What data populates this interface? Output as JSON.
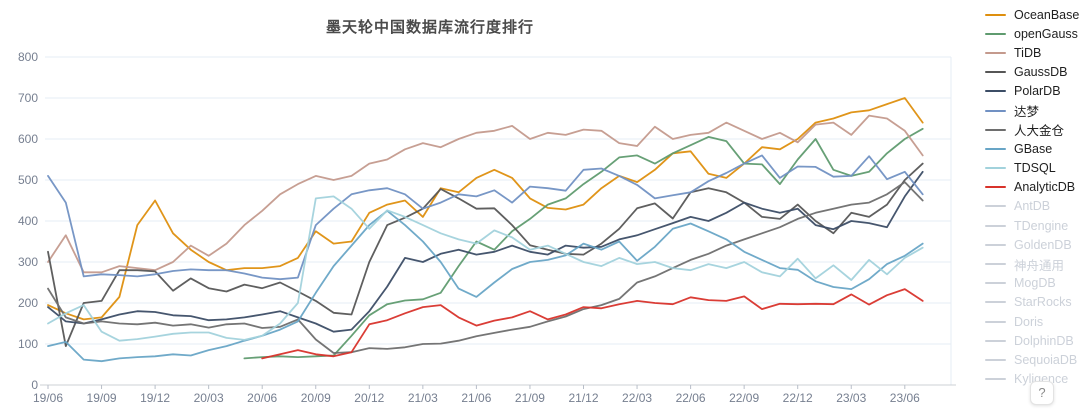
{
  "title": "墨天轮中国数据库流行度排行",
  "help_button_label": "?",
  "chart_data": {
    "type": "line",
    "title": "墨天轮中国数据库流行度排行",
    "xlabel": "",
    "ylabel": "",
    "ylim": [
      0,
      800
    ],
    "yticks": [
      0,
      100,
      200,
      300,
      400,
      500,
      600,
      700,
      800
    ],
    "grid": true,
    "legend_position": "right",
    "x_monthly": "2019/06 to 2023/07, one point per month (50 points)",
    "xtick_labels": [
      "19/06",
      "19/09",
      "19/12",
      "20/03",
      "20/06",
      "20/09",
      "20/12",
      "21/03",
      "21/06",
      "21/09",
      "21/12",
      "22/03",
      "22/06",
      "22/09",
      "22/12",
      "23/03",
      "23/06"
    ],
    "series": [
      {
        "name": "OceanBase",
        "color": "#de8f0e",
        "active": true,
        "values": [
          195,
          175,
          160,
          165,
          215,
          390,
          450,
          370,
          330,
          300,
          280,
          285,
          285,
          290,
          310,
          375,
          345,
          350,
          420,
          440,
          450,
          410,
          480,
          470,
          505,
          525,
          505,
          455,
          432,
          428,
          440,
          480,
          510,
          495,
          525,
          565,
          570,
          515,
          505,
          540,
          580,
          575,
          600,
          640,
          650,
          665,
          670,
          685,
          700,
          640
        ]
      },
      {
        "name": "openGauss",
        "color": "#5f9b6f",
        "active": true,
        "values": [
          null,
          null,
          null,
          null,
          null,
          null,
          null,
          null,
          null,
          null,
          null,
          65,
          68,
          70,
          68,
          70,
          72,
          120,
          170,
          197,
          206,
          209,
          225,
          290,
          350,
          330,
          375,
          405,
          440,
          455,
          490,
          520,
          555,
          560,
          540,
          565,
          585,
          605,
          595,
          540,
          538,
          490,
          550,
          600,
          525,
          510,
          520,
          565,
          600,
          625
        ]
      },
      {
        "name": "TiDB",
        "color": "#c49a8d",
        "active": true,
        "values": [
          300,
          365,
          275,
          275,
          290,
          285,
          280,
          300,
          340,
          315,
          345,
          390,
          425,
          465,
          490,
          510,
          500,
          510,
          540,
          550,
          575,
          590,
          580,
          600,
          615,
          620,
          632,
          600,
          615,
          610,
          623,
          620,
          590,
          583,
          630,
          600,
          610,
          615,
          640,
          620,
          600,
          615,
          592,
          635,
          640,
          610,
          657,
          650,
          620,
          560
        ]
      },
      {
        "name": "GaussDB",
        "color": "#565656",
        "active": true,
        "values": [
          325,
          95,
          200,
          205,
          280,
          280,
          277,
          230,
          260,
          236,
          228,
          245,
          236,
          250,
          228,
          205,
          176,
          172,
          300,
          390,
          408,
          430,
          478,
          455,
          430,
          431,
          390,
          341,
          330,
          320,
          318,
          345,
          381,
          431,
          443,
          406,
          470,
          480,
          470,
          445,
          410,
          405,
          440,
          400,
          370,
          420,
          410,
          440,
          500,
          540
        ]
      },
      {
        "name": "PolarDB",
        "color": "#3c4d66",
        "active": true,
        "values": [
          190,
          155,
          150,
          160,
          172,
          180,
          178,
          170,
          168,
          158,
          160,
          165,
          172,
          180,
          165,
          150,
          130,
          135,
          180,
          240,
          310,
          300,
          320,
          330,
          318,
          325,
          340,
          325,
          318,
          340,
          335,
          337,
          355,
          365,
          380,
          395,
          410,
          400,
          420,
          445,
          430,
          420,
          430,
          390,
          380,
          400,
          395,
          385,
          460,
          520
        ]
      },
      {
        "name": "达梦",
        "color": "#7191c3",
        "active": true,
        "values": [
          510,
          445,
          265,
          270,
          268,
          265,
          270,
          278,
          282,
          280,
          280,
          272,
          262,
          258,
          262,
          390,
          430,
          465,
          475,
          480,
          465,
          430,
          445,
          465,
          460,
          475,
          445,
          484,
          480,
          474,
          525,
          528,
          510,
          488,
          455,
          463,
          470,
          497,
          517,
          540,
          560,
          505,
          533,
          532,
          508,
          510,
          558,
          502,
          520,
          465
        ]
      },
      {
        "name": "人大金仓",
        "color": "#6e6e6e",
        "active": true,
        "values": [
          235,
          165,
          150,
          155,
          150,
          148,
          152,
          145,
          148,
          140,
          148,
          150,
          139,
          142,
          160,
          111,
          78,
          80,
          90,
          88,
          92,
          100,
          101,
          108,
          119,
          127,
          135,
          142,
          155,
          167,
          185,
          195,
          210,
          250,
          265,
          285,
          305,
          320,
          340,
          355,
          370,
          385,
          405,
          420,
          430,
          440,
          445,
          465,
          495,
          450
        ]
      },
      {
        "name": "GBase",
        "color": "#68a5c6",
        "active": true,
        "values": [
          95,
          105,
          62,
          58,
          65,
          68,
          70,
          75,
          72,
          85,
          95,
          108,
          120,
          135,
          155,
          225,
          290,
          340,
          390,
          425,
          390,
          350,
          300,
          235,
          215,
          250,
          283,
          300,
          305,
          316,
          345,
          330,
          350,
          303,
          337,
          381,
          394,
          375,
          355,
          325,
          305,
          285,
          281,
          253,
          239,
          234,
          258,
          295,
          315,
          345
        ]
      },
      {
        "name": "TDSQL",
        "color": "#a2d2dc",
        "active": true,
        "values": [
          150,
          175,
          195,
          130,
          108,
          112,
          118,
          125,
          128,
          128,
          115,
          110,
          120,
          150,
          200,
          455,
          460,
          430,
          381,
          426,
          410,
          390,
          370,
          355,
          345,
          377,
          360,
          330,
          340,
          320,
          300,
          290,
          310,
          295,
          300,
          285,
          280,
          295,
          285,
          300,
          275,
          265,
          308,
          260,
          292,
          256,
          305,
          270,
          310,
          335
        ]
      },
      {
        "name": "AnalyticDB",
        "color": "#d8332b",
        "active": true,
        "values": [
          null,
          null,
          null,
          null,
          null,
          null,
          null,
          null,
          null,
          null,
          null,
          null,
          65,
          75,
          85,
          75,
          70,
          80,
          148,
          158,
          175,
          190,
          195,
          165,
          145,
          157,
          165,
          180,
          160,
          172,
          190,
          187,
          197,
          205,
          200,
          197,
          214,
          207,
          205,
          216,
          185,
          198,
          197,
          198,
          197,
          221,
          196,
          219,
          234,
          205
        ]
      },
      {
        "name": "AntDB",
        "color": "#ccd1d9",
        "active": false,
        "values": []
      },
      {
        "name": "TDengine",
        "color": "#ccd1d9",
        "active": false,
        "values": []
      },
      {
        "name": "GoldenDB",
        "color": "#ccd1d9",
        "active": false,
        "values": []
      },
      {
        "name": "神舟通用",
        "color": "#ccd1d9",
        "active": false,
        "values": []
      },
      {
        "name": "MogDB",
        "color": "#ccd1d9",
        "active": false,
        "values": []
      },
      {
        "name": "StarRocks",
        "color": "#ccd1d9",
        "active": false,
        "values": []
      },
      {
        "name": "Doris",
        "color": "#ccd1d9",
        "active": false,
        "values": []
      },
      {
        "name": "DolphinDB",
        "color": "#ccd1d9",
        "active": false,
        "values": []
      },
      {
        "name": "SequoiaDB",
        "color": "#ccd1d9",
        "active": false,
        "values": []
      },
      {
        "name": "Kyligence",
        "color": "#ccd1d9",
        "active": false,
        "values": []
      }
    ]
  },
  "style": {
    "grid_color": "#e6ecf4",
    "axis_color": "#ccd0d6",
    "tick_color": "#b8bec8",
    "label_color": "#767f90"
  }
}
